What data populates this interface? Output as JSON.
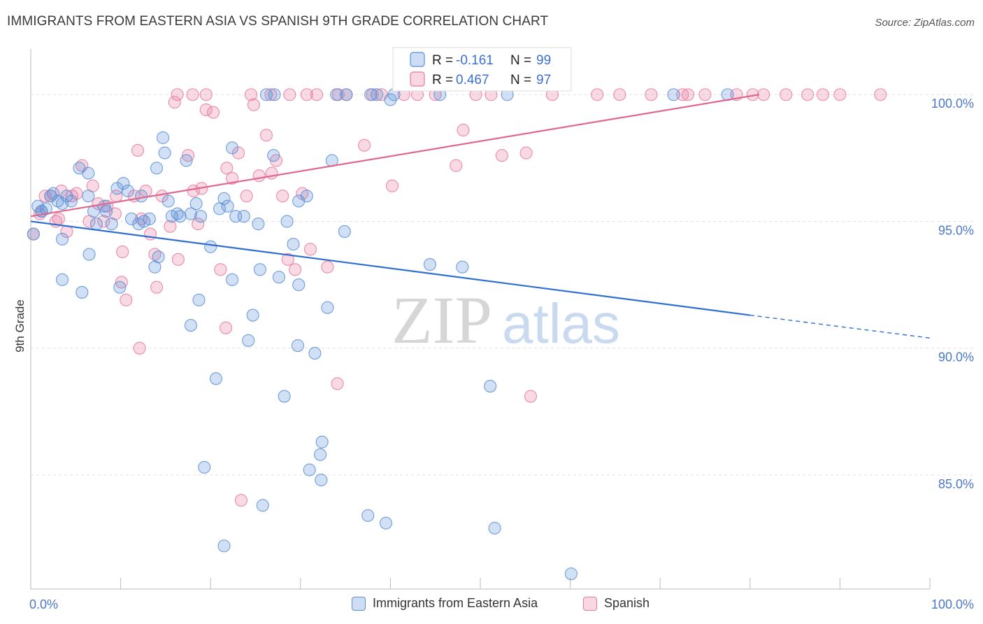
{
  "header": {
    "title": "IMMIGRANTS FROM EASTERN ASIA VS SPANISH 9TH GRADE CORRELATION CHART",
    "source": "Source: ZipAtlas.com"
  },
  "watermark": {
    "zip": "ZIP",
    "atlas": "atlas"
  },
  "chart_data": {
    "type": "scatter",
    "ylabel": "9th Grade",
    "xlim": [
      0,
      100
    ],
    "ylim": [
      80.5,
      101.8
    ],
    "x_tick_labels": [
      "0.0%",
      "100.0%"
    ],
    "y_ticks": [
      85,
      90,
      95,
      100
    ],
    "y_tick_labels": [
      "85.0%",
      "90.0%",
      "95.0%",
      "100.0%"
    ],
    "grid": true,
    "legend_position": "top-center",
    "colors": {
      "blue": "#5b8fd6",
      "pink": "#e8799d",
      "blue_line": "#2e6fd0",
      "pink_line": "#e0688f",
      "tick_label": "#4a78c8"
    },
    "legend": [
      {
        "r_label": "R =",
        "r_value": "-0.161",
        "n_label": "N =",
        "n_value": "99"
      },
      {
        "r_label": "R =",
        "r_value": "0.467",
        "n_label": "N =",
        "n_value": "97"
      }
    ],
    "series": [
      {
        "name": "Immigrants from Eastern Asia",
        "color": "#5b8fd6",
        "trend": {
          "x1": 0,
          "y1": 95.0,
          "x2": 80,
          "y2": 91.3,
          "dashed_to_x": 100,
          "dashed_to_y": 90.4
        },
        "points": [
          [
            0.3,
            94.5
          ],
          [
            0.8,
            95.6
          ],
          [
            1.2,
            95.4
          ],
          [
            1.7,
            95.5
          ],
          [
            2.2,
            96.0
          ],
          [
            3.0,
            95.8
          ],
          [
            3.5,
            95.7
          ],
          [
            4.0,
            96.0
          ],
          [
            4.5,
            95.8
          ],
          [
            5.4,
            97.1
          ],
          [
            6.4,
            96.9
          ],
          [
            6.4,
            96.0
          ],
          [
            7.0,
            95.4
          ],
          [
            7.3,
            94.9
          ],
          [
            8.2,
            95.6
          ],
          [
            8.4,
            95.4
          ],
          [
            9.0,
            94.9
          ],
          [
            9.6,
            96.3
          ],
          [
            10.3,
            96.5
          ],
          [
            10.8,
            96.2
          ],
          [
            11.2,
            95.1
          ],
          [
            12.0,
            94.9
          ],
          [
            12.3,
            96.0
          ],
          [
            12.6,
            95.0
          ],
          [
            13.2,
            95.1
          ],
          [
            14.0,
            97.1
          ],
          [
            14.7,
            98.3
          ],
          [
            14.9,
            97.7
          ],
          [
            15.3,
            95.8
          ],
          [
            15.7,
            95.2
          ],
          [
            16.3,
            95.3
          ],
          [
            16.6,
            95.2
          ],
          [
            17.3,
            97.4
          ],
          [
            17.8,
            95.3
          ],
          [
            18.4,
            95.7
          ],
          [
            18.9,
            95.2
          ],
          [
            20.0,
            94.0
          ],
          [
            21.5,
            95.9
          ],
          [
            21.0,
            95.5
          ],
          [
            21.9,
            95.6
          ],
          [
            22.4,
            97.9
          ],
          [
            22.8,
            95.2
          ],
          [
            23.7,
            95.2
          ],
          [
            25.3,
            94.9
          ],
          [
            27.0,
            97.6
          ],
          [
            28.5,
            95.0
          ],
          [
            29.2,
            94.1
          ],
          [
            29.8,
            95.8
          ],
          [
            30.7,
            96.0
          ],
          [
            33.5,
            97.4
          ],
          [
            34.9,
            94.6
          ],
          [
            35.1,
            100.0
          ],
          [
            37.8,
            100.0
          ],
          [
            44.4,
            93.3
          ],
          [
            48.0,
            93.2
          ],
          [
            6.5,
            93.7
          ],
          [
            3.5,
            94.3
          ],
          [
            1.2,
            95.4
          ],
          [
            2.5,
            96.1
          ],
          [
            3.5,
            92.7
          ],
          [
            5.7,
            92.2
          ],
          [
            9.9,
            92.4
          ],
          [
            13.8,
            93.2
          ],
          [
            14.2,
            93.6
          ],
          [
            18.7,
            91.9
          ],
          [
            17.8,
            90.9
          ],
          [
            20.6,
            88.8
          ],
          [
            22.4,
            92.7
          ],
          [
            25.5,
            93.1
          ],
          [
            24.2,
            90.3
          ],
          [
            24.7,
            91.3
          ],
          [
            27.6,
            92.8
          ],
          [
            29.7,
            90.1
          ],
          [
            28.2,
            88.1
          ],
          [
            29.8,
            92.5
          ],
          [
            31.6,
            89.8
          ],
          [
            33.0,
            91.6
          ],
          [
            32.4,
            86.3
          ],
          [
            32.2,
            85.8
          ],
          [
            31.0,
            85.2
          ],
          [
            32.3,
            84.8
          ],
          [
            19.3,
            85.3
          ],
          [
            25.8,
            83.8
          ],
          [
            21.5,
            82.2
          ],
          [
            37.5,
            83.4
          ],
          [
            39.5,
            83.1
          ],
          [
            51.1,
            88.5
          ],
          [
            51.6,
            82.9
          ],
          [
            60.1,
            81.1
          ],
          [
            26.2,
            100.0
          ],
          [
            27.1,
            100.0
          ],
          [
            34.0,
            100.0
          ],
          [
            38.5,
            100.0
          ],
          [
            40.0,
            99.8
          ],
          [
            45.5,
            100.0
          ],
          [
            53.0,
            100.0
          ],
          [
            71.5,
            100.0
          ],
          [
            77.5,
            100.0
          ],
          [
            40.4,
            100.0
          ]
        ]
      },
      {
        "name": "Spanish",
        "color": "#e8799d",
        "trend": {
          "x1": 0,
          "y1": 95.2,
          "x2": 81,
          "y2": 100.0
        },
        "points": [
          [
            0.3,
            94.5
          ],
          [
            1.0,
            95.3
          ],
          [
            1.6,
            96.0
          ],
          [
            2.2,
            96.0
          ],
          [
            2.8,
            95.0
          ],
          [
            3.4,
            96.2
          ],
          [
            4.0,
            94.6
          ],
          [
            4.6,
            96.0
          ],
          [
            5.1,
            96.1
          ],
          [
            5.7,
            97.2
          ],
          [
            6.5,
            95.0
          ],
          [
            6.9,
            96.4
          ],
          [
            7.5,
            95.7
          ],
          [
            8.1,
            95.0
          ],
          [
            8.5,
            95.6
          ],
          [
            9.4,
            95.3
          ],
          [
            10.2,
            93.8
          ],
          [
            11.5,
            96.0
          ],
          [
            11.9,
            97.8
          ],
          [
            12.3,
            95.1
          ],
          [
            12.8,
            96.2
          ],
          [
            13.3,
            94.5
          ],
          [
            13.8,
            93.7
          ],
          [
            14.6,
            96.0
          ],
          [
            15.5,
            94.8
          ],
          [
            16.0,
            99.7
          ],
          [
            16.4,
            93.5
          ],
          [
            17.5,
            97.6
          ],
          [
            18.1,
            96.2
          ],
          [
            18.6,
            94.9
          ],
          [
            19.0,
            96.3
          ],
          [
            19.5,
            99.4
          ],
          [
            20.3,
            99.3
          ],
          [
            21.1,
            93.1
          ],
          [
            21.8,
            97.1
          ],
          [
            22.4,
            96.7
          ],
          [
            23.1,
            97.7
          ],
          [
            24.0,
            96.0
          ],
          [
            24.8,
            99.6
          ],
          [
            25.4,
            96.8
          ],
          [
            26.2,
            98.4
          ],
          [
            26.8,
            96.9
          ],
          [
            27.3,
            97.4
          ],
          [
            28.0,
            96.0
          ],
          [
            28.6,
            93.5
          ],
          [
            29.4,
            93.1
          ],
          [
            30.2,
            96.1
          ],
          [
            31.1,
            93.9
          ],
          [
            31.8,
            100.0
          ],
          [
            33.0,
            93.2
          ],
          [
            34.2,
            100.0
          ],
          [
            37.1,
            98.0
          ],
          [
            39.0,
            100.0
          ],
          [
            40.2,
            96.4
          ],
          [
            41.5,
            100.0
          ],
          [
            43.0,
            100.0
          ],
          [
            45.0,
            100.0
          ],
          [
            47.3,
            97.2
          ],
          [
            48.1,
            98.6
          ],
          [
            49.5,
            100.0
          ],
          [
            51.2,
            100.0
          ],
          [
            52.4,
            97.6
          ],
          [
            55.1,
            97.7
          ],
          [
            55.6,
            88.1
          ],
          [
            58.0,
            100.0
          ],
          [
            63.0,
            100.0
          ],
          [
            65.5,
            100.0
          ],
          [
            69.0,
            100.0
          ],
          [
            73.1,
            100.0
          ],
          [
            75.0,
            100.0
          ],
          [
            78.5,
            100.0
          ],
          [
            81.5,
            100.0
          ],
          [
            84.0,
            100.0
          ],
          [
            86.4,
            100.0
          ],
          [
            88.1,
            100.0
          ],
          [
            90.0,
            100.0
          ],
          [
            94.5,
            100.0
          ],
          [
            12.1,
            90.0
          ],
          [
            10.6,
            91.9
          ],
          [
            10.1,
            92.6
          ],
          [
            14.0,
            92.4
          ],
          [
            21.7,
            90.8
          ],
          [
            23.4,
            84.0
          ],
          [
            34.1,
            88.6
          ],
          [
            16.3,
            100.0
          ],
          [
            18.0,
            100.0
          ],
          [
            19.5,
            100.0
          ],
          [
            24.5,
            100.0
          ],
          [
            26.7,
            100.0
          ],
          [
            28.8,
            100.0
          ],
          [
            30.7,
            100.0
          ],
          [
            35.1,
            100.0
          ],
          [
            38.0,
            100.0
          ],
          [
            72.5,
            100.0
          ],
          [
            80.3,
            100.0
          ],
          [
            3.1,
            95.1
          ],
          [
            9.5,
            96.0
          ]
        ]
      }
    ]
  }
}
